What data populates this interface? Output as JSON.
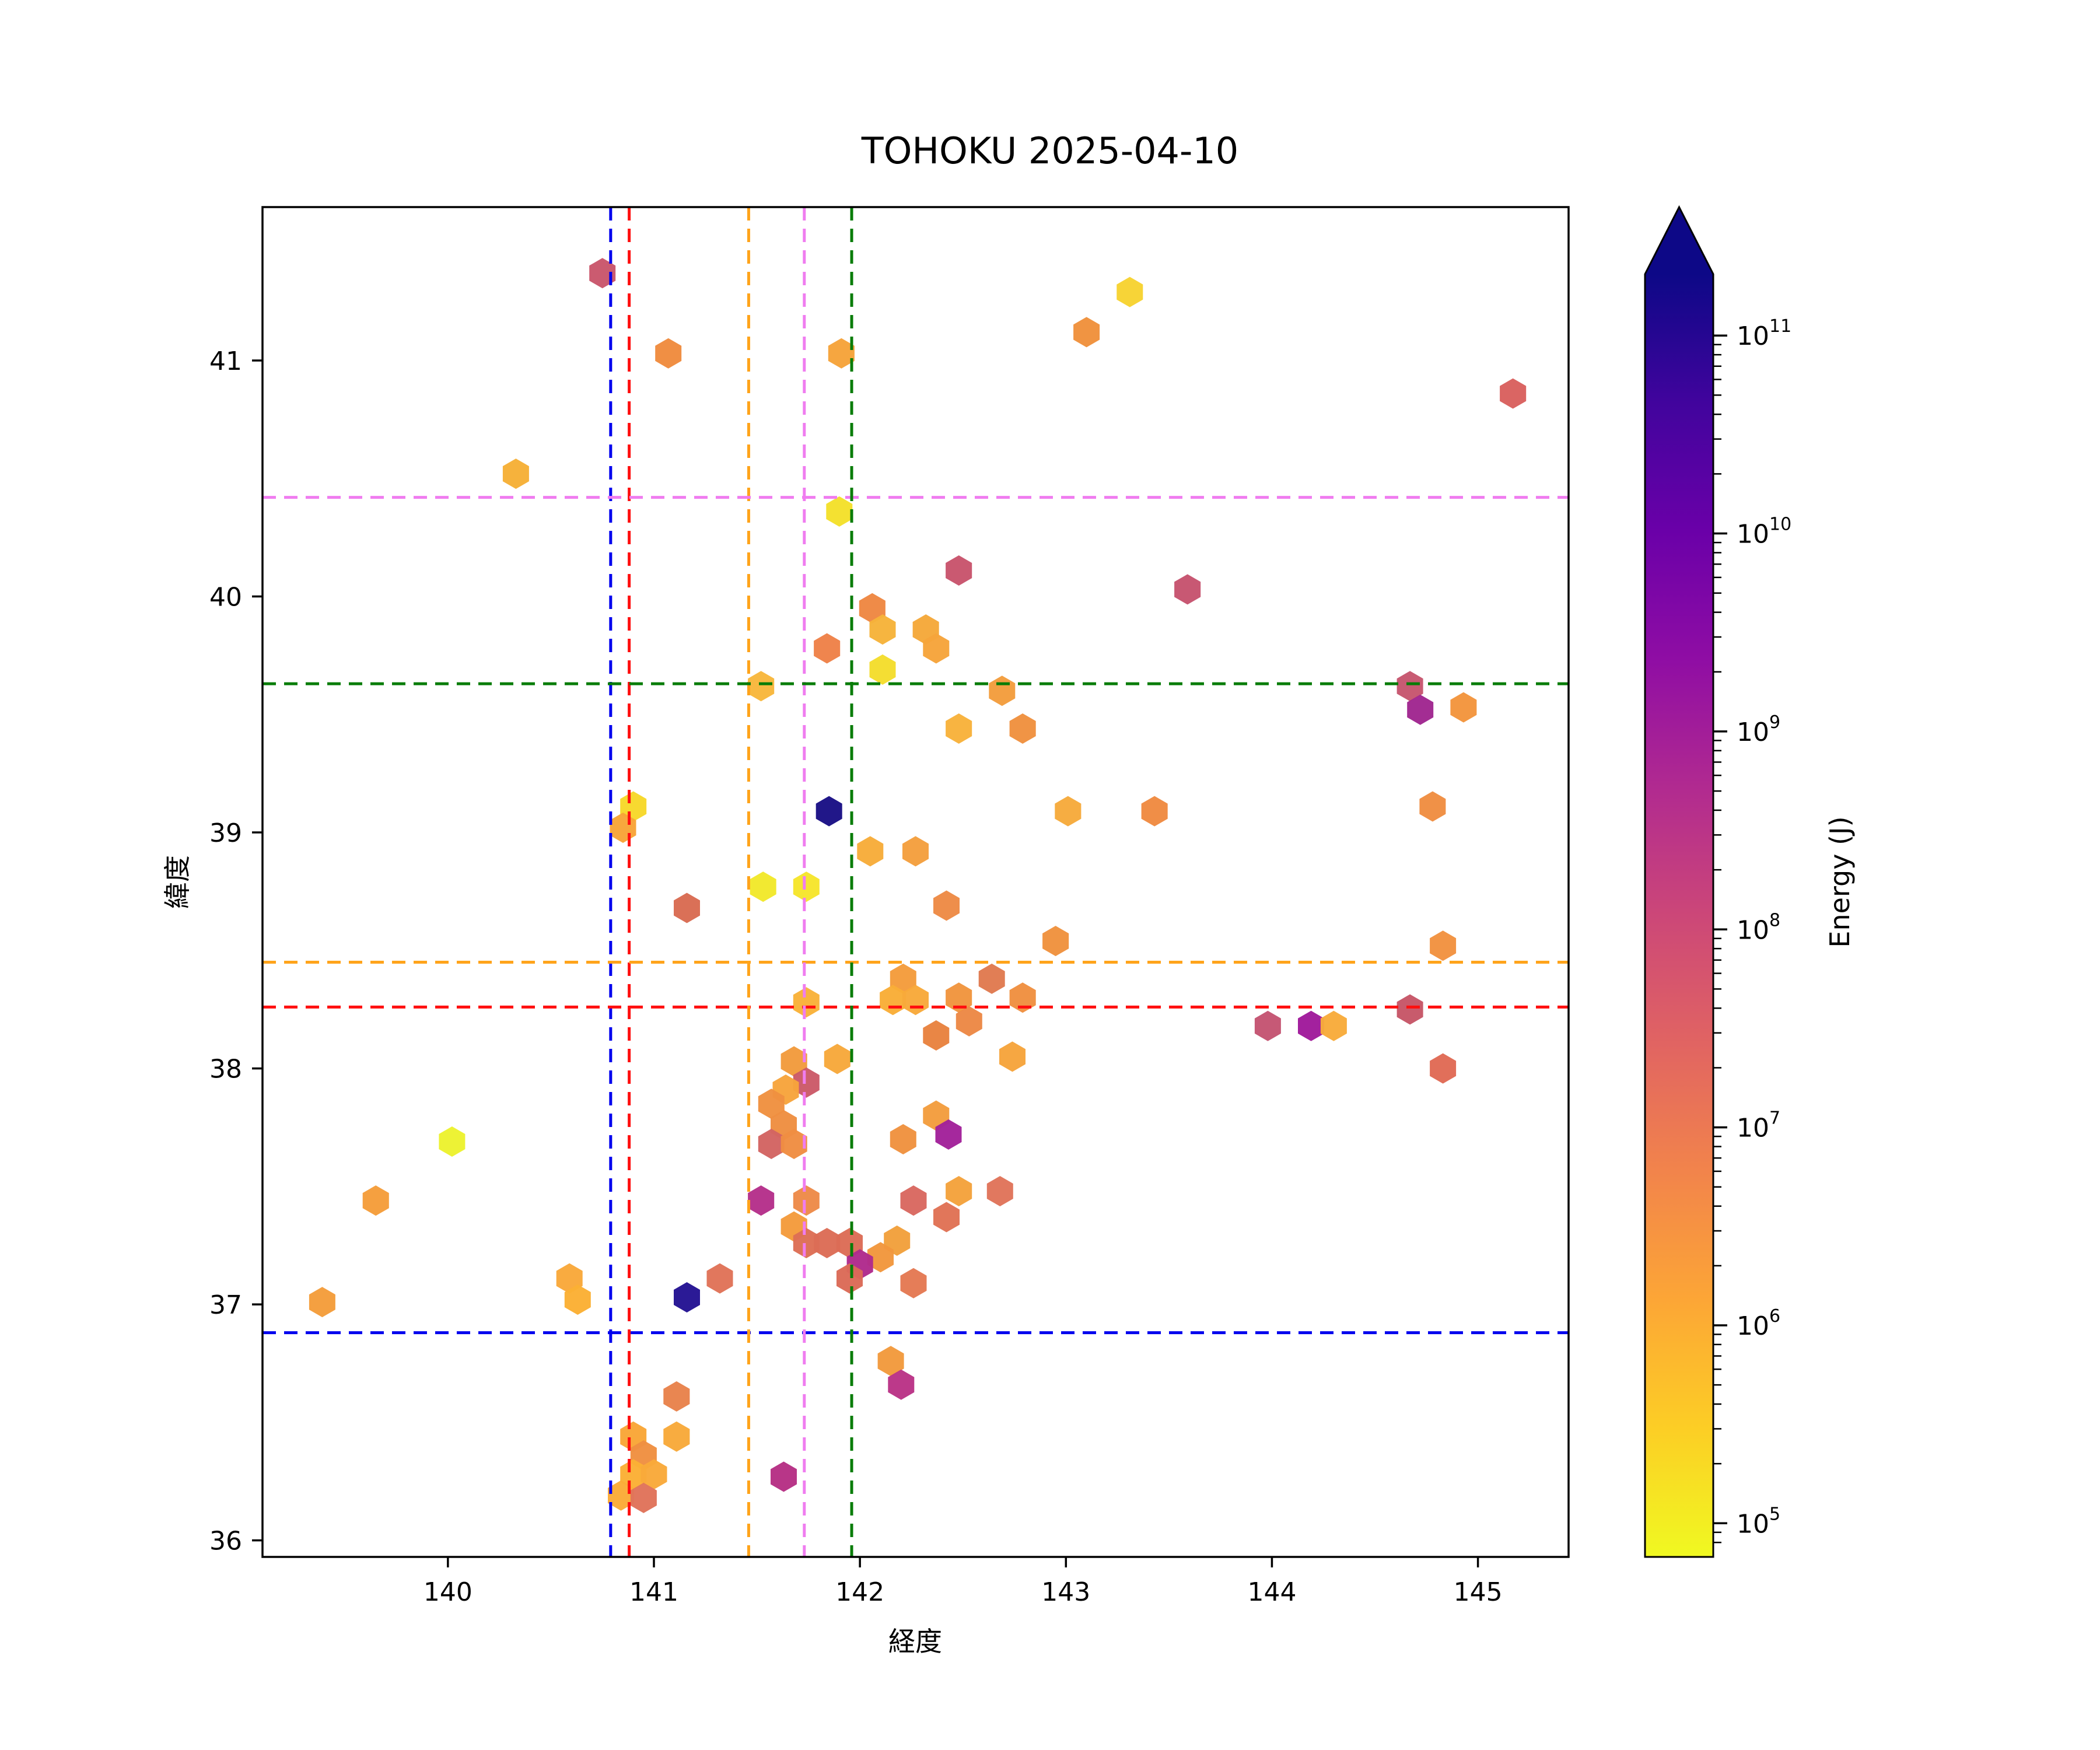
{
  "title": "TOHOKU 2025-04-10",
  "chart_data": {
    "type": "scatter",
    "title": "TOHOKU 2025-04-10",
    "xlabel": "経度",
    "ylabel": "緯度",
    "xlim": [
      139.1,
      145.44
    ],
    "ylim": [
      35.93,
      41.65
    ],
    "xticks": [
      140,
      141,
      142,
      143,
      144,
      145
    ],
    "yticks": [
      36,
      37,
      38,
      39,
      40,
      41
    ],
    "grid": false,
    "marker": "hexagon",
    "legend_position": "none",
    "colorbar": {
      "label": "Energy (J)",
      "scale": "log",
      "extend": "max",
      "colormap": "plasma_r",
      "tick_exponents": [
        5,
        6,
        7,
        8,
        9,
        10,
        11
      ],
      "range_exponents": [
        4.83,
        11.31
      ],
      "gradient_top_to_bottom": [
        "#0d0887",
        "#41049d",
        "#6a00a8",
        "#8f0da4",
        "#b12a90",
        "#cc4778",
        "#e16462",
        "#f2844b",
        "#fca636",
        "#fcce25",
        "#f0f921"
      ]
    },
    "crosshairs": [
      {
        "name": "blue",
        "color": "#0000ee",
        "lon": 140.79,
        "lat": 36.88
      },
      {
        "name": "red",
        "color": "#ff0f0f",
        "lon": 140.88,
        "lat": 38.26
      },
      {
        "name": "orange",
        "color": "#ffa41b",
        "lon": 141.46,
        "lat": 38.45
      },
      {
        "name": "violet",
        "color": "#f07df0",
        "lon": 141.73,
        "lat": 40.42
      },
      {
        "name": "green",
        "color": "#077c07",
        "lon": 141.96,
        "lat": 39.63
      }
    ],
    "points": [
      [
        140.75,
        41.37,
        "#c9566b"
      ],
      [
        141.07,
        41.03,
        "#f08b3e"
      ],
      [
        141.91,
        41.03,
        "#f6a33a"
      ],
      [
        143.31,
        41.29,
        "#f7d331"
      ],
      [
        143.1,
        41.12,
        "#f0913c"
      ],
      [
        145.17,
        40.86,
        "#d9605e"
      ],
      [
        140.33,
        40.52,
        "#f6af36"
      ],
      [
        141.9,
        40.36,
        "#f4e02a"
      ],
      [
        142.48,
        40.11,
        "#c8546c"
      ],
      [
        143.59,
        40.03,
        "#c6536e"
      ],
      [
        142.06,
        39.95,
        "#ee8742"
      ],
      [
        142.11,
        39.86,
        "#f6b33a"
      ],
      [
        142.32,
        39.86,
        "#f5a83a"
      ],
      [
        142.37,
        39.78,
        "#f6a43b"
      ],
      [
        141.84,
        39.78,
        "#ee8148"
      ],
      [
        142.11,
        39.69,
        "#f4dd2c"
      ],
      [
        141.52,
        39.62,
        "#f8b73c"
      ],
      [
        142.69,
        39.6,
        "#f39d3d"
      ],
      [
        142.48,
        39.44,
        "#f8b23b"
      ],
      [
        142.79,
        39.44,
        "#f0913f"
      ],
      [
        144.67,
        39.62,
        "#c6566e"
      ],
      [
        144.72,
        39.52,
        "#a02690"
      ],
      [
        144.93,
        39.53,
        "#f3953d"
      ],
      [
        140.9,
        39.11,
        "#f7d829"
      ],
      [
        140.85,
        39.02,
        "#f8a437"
      ],
      [
        141.85,
        39.09,
        "#1a1085"
      ],
      [
        143.01,
        39.09,
        "#f6aa3c"
      ],
      [
        143.43,
        39.09,
        "#f08a41"
      ],
      [
        144.78,
        39.11,
        "#f08d41"
      ],
      [
        142.05,
        38.92,
        "#f7ac3a"
      ],
      [
        142.27,
        38.92,
        "#f49f3e"
      ],
      [
        141.53,
        38.77,
        "#f2e82a"
      ],
      [
        141.74,
        38.77,
        "#f6e52b"
      ],
      [
        141.16,
        38.68,
        "#d96b52"
      ],
      [
        142.42,
        38.69,
        "#ed8a45"
      ],
      [
        142.95,
        38.54,
        "#f0923e"
      ],
      [
        144.83,
        38.52,
        "#f29240"
      ],
      [
        142.21,
        38.38,
        "#f49c3c"
      ],
      [
        142.64,
        38.38,
        "#e07a50"
      ],
      [
        142.16,
        38.29,
        "#f9ad37"
      ],
      [
        142.27,
        38.29,
        "#f8a93a"
      ],
      [
        142.48,
        38.3,
        "#f1953e"
      ],
      [
        142.79,
        38.3,
        "#ef8f40"
      ],
      [
        141.74,
        38.28,
        "#f9b239"
      ],
      [
        144.67,
        38.25,
        "#c65667"
      ],
      [
        143.98,
        38.18,
        "#c45472"
      ],
      [
        144.19,
        38.18,
        "#a01a9b"
      ],
      [
        144.3,
        38.18,
        "#f8ab3b"
      ],
      [
        142.53,
        38.2,
        "#ec8845"
      ],
      [
        142.37,
        38.14,
        "#e8823f"
      ],
      [
        141.89,
        38.04,
        "#f7a83b"
      ],
      [
        141.68,
        38.03,
        "#f29b3d"
      ],
      [
        144.83,
        38.0,
        "#e06a55"
      ],
      [
        141.74,
        37.94,
        "#cb5a68"
      ],
      [
        141.64,
        37.91,
        "#f7a43c"
      ],
      [
        141.57,
        37.85,
        "#ef9140"
      ],
      [
        142.37,
        37.8,
        "#f39d3e"
      ],
      [
        141.63,
        37.76,
        "#ee8e41"
      ],
      [
        142.74,
        38.05,
        "#f6a43c"
      ],
      [
        142.21,
        37.7,
        "#f0923f"
      ],
      [
        142.43,
        37.72,
        "#a2219a"
      ],
      [
        141.57,
        37.68,
        "#d36462"
      ],
      [
        141.68,
        37.68,
        "#f08d42"
      ],
      [
        140.02,
        37.69,
        "#ecf22e"
      ],
      [
        139.65,
        37.44,
        "#f59d3a"
      ],
      [
        141.52,
        37.44,
        "#b5308a"
      ],
      [
        141.74,
        37.44,
        "#ed8a48"
      ],
      [
        142.26,
        37.44,
        "#d96860"
      ],
      [
        142.48,
        37.48,
        "#f4a23c"
      ],
      [
        142.68,
        37.48,
        "#e0745a"
      ],
      [
        142.42,
        37.37,
        "#e07255"
      ],
      [
        141.68,
        37.33,
        "#f49b3c"
      ],
      [
        141.74,
        37.26,
        "#dd6e55"
      ],
      [
        141.84,
        37.26,
        "#dc6c56"
      ],
      [
        141.95,
        37.26,
        "#dc6c56"
      ],
      [
        142.18,
        37.27,
        "#f2a03c"
      ],
      [
        142.1,
        37.2,
        "#f2973d"
      ],
      [
        142.0,
        37.17,
        "#b02a8c"
      ],
      [
        141.95,
        37.11,
        "#db6a57"
      ],
      [
        142.26,
        37.09,
        "#e47953"
      ],
      [
        140.59,
        37.11,
        "#f9a83a"
      ],
      [
        140.63,
        37.02,
        "#fbb034"
      ],
      [
        141.16,
        37.03,
        "#241393"
      ],
      [
        141.32,
        37.11,
        "#e07358"
      ],
      [
        139.39,
        37.01,
        "#f49d3b"
      ],
      [
        141.11,
        36.61,
        "#e8824b"
      ],
      [
        142.15,
        36.76,
        "#f29a3d"
      ],
      [
        142.2,
        36.66,
        "#ba3386"
      ],
      [
        141.11,
        36.44,
        "#f8a93a"
      ],
      [
        140.9,
        36.44,
        "#f9a637"
      ],
      [
        140.95,
        36.36,
        "#f08f41"
      ],
      [
        140.9,
        36.28,
        "#fbaf35"
      ],
      [
        141.0,
        36.28,
        "#f9a93a"
      ],
      [
        140.84,
        36.19,
        "#fbab37"
      ],
      [
        140.95,
        36.18,
        "#e0735a"
      ],
      [
        141.63,
        36.27,
        "#b62f84"
      ]
    ]
  }
}
